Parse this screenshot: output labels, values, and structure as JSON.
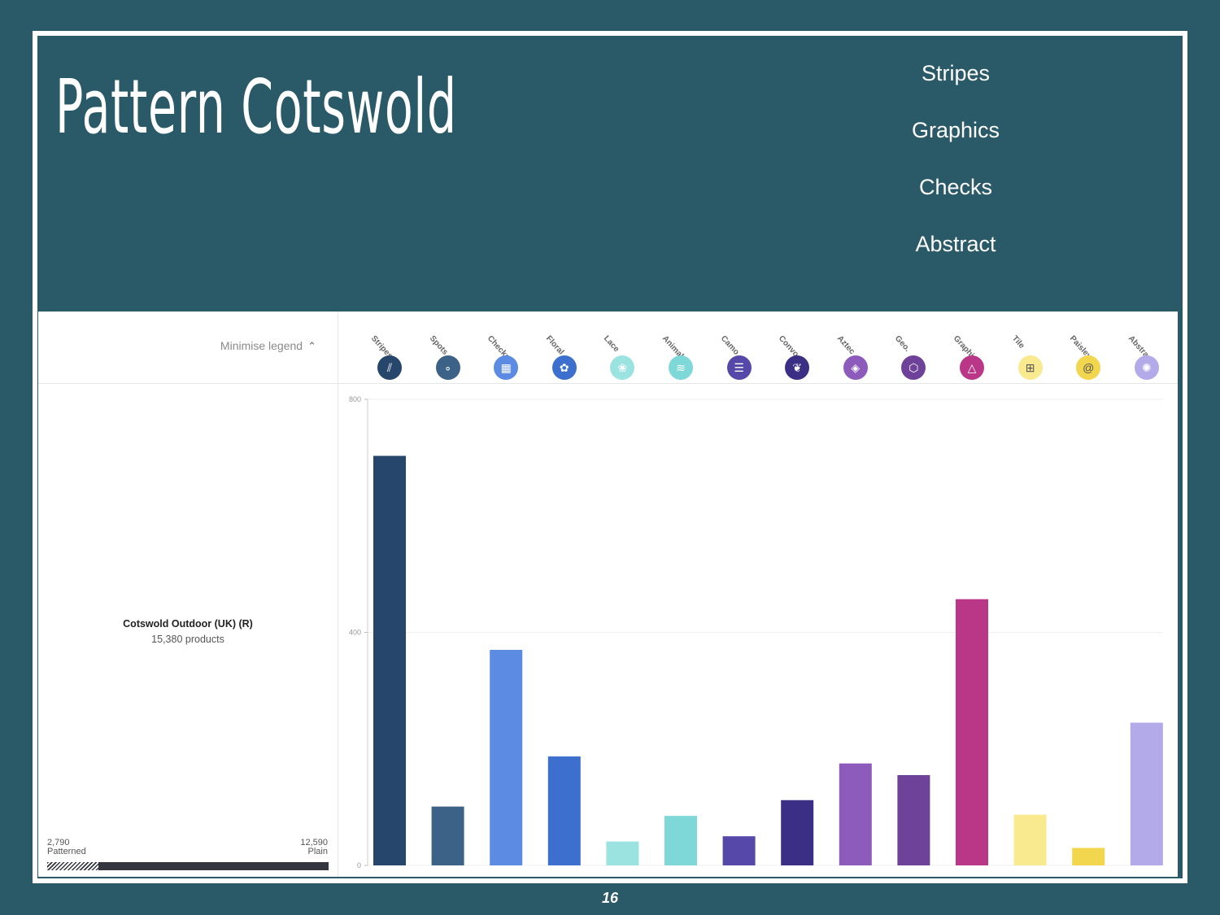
{
  "slide": {
    "title": "Pattern Cotswold",
    "patterns_list": [
      "Stripes",
      "Graphics",
      "Checks",
      "Abstract"
    ],
    "page_number": "16"
  },
  "legend": {
    "minimise_label": "Minimise legend",
    "store_name": "Cotswold Outdoor (UK) (R)",
    "store_products": "15,380 products",
    "patterned_value": "2,790",
    "patterned_label": "Patterned",
    "plain_value": "12,590",
    "plain_label": "Plain",
    "patterned_fraction": 0.181
  },
  "chart_data": {
    "type": "bar",
    "categories": [
      "Stripes",
      "Spots",
      "Checks",
      "Floral",
      "Lace",
      "Animal",
      "Camo",
      "Convo.",
      "Aztec",
      "Geo.",
      "Graphic",
      "Tile",
      "Paisley",
      "Abstract"
    ],
    "values": [
      703,
      101,
      370,
      187,
      41,
      85,
      50,
      112,
      175,
      155,
      457,
      87,
      30,
      245
    ],
    "colors": [
      "#26466b",
      "#3c6287",
      "#5b8be3",
      "#3c6fce",
      "#9ae3e1",
      "#7fd8d8",
      "#5548a8",
      "#3b2f85",
      "#8d5bbb",
      "#6f4299",
      "#ba3787",
      "#f9e98f",
      "#f2d64e",
      "#b3aae9"
    ],
    "icons": [
      "stripes-icon",
      "spots-icon",
      "checks-icon",
      "floral-icon",
      "lace-icon",
      "animal-icon",
      "camo-icon",
      "convo-icon",
      "aztec-icon",
      "geo-icon",
      "graphic-icon",
      "tile-icon",
      "paisley-icon",
      "abstract-icon"
    ],
    "icon_glyphs": [
      "⫽",
      "∘",
      "▦",
      "✿",
      "❀",
      "≋",
      "☰",
      "❦",
      "◈",
      "⬡",
      "△",
      "⊞",
      "@",
      "✺"
    ],
    "yticks": [
      "800",
      "400",
      "0"
    ],
    "ylim": [
      0,
      800
    ]
  }
}
